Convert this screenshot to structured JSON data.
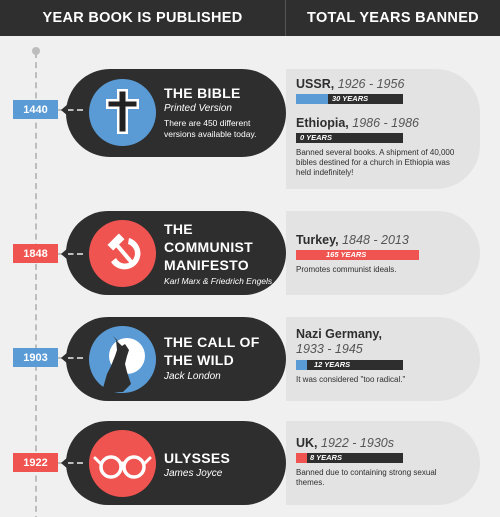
{
  "header": {
    "col_left": "YEAR BOOK IS PUBLISHED",
    "col_right": "TOTAL YEARS BANNED"
  },
  "colors": {
    "dark": "#2e2e2e",
    "blue": "#5b9bd5",
    "red": "#ef5450",
    "light": "#e3e3e3"
  },
  "books": [
    {
      "year": "1440",
      "title": [
        "THE BIBLE"
      ],
      "subtitle": "Printed Version",
      "note": "There are 450 different versions available today.",
      "icon": "cross-icon",
      "bans": [
        {
          "country": "USSR,",
          "years": "1926 - 1956",
          "bar_label": "30 YEARS",
          "bar_value": 30
        },
        {
          "country": "Ethiopia,",
          "years": "1986 - 1986",
          "bar_label": "0 YEARS",
          "bar_value": 0
        }
      ],
      "reason": "Banned several books. A shipment of 40,000 bibles destined for a church in Ethiopia was held indefinitely!"
    },
    {
      "year": "1848",
      "title": [
        "THE",
        "COMMUNIST",
        "MANIFESTO"
      ],
      "subtitle": "Karl Marx & Friedrich Engels",
      "icon": "hammer-sickle-icon",
      "bans": [
        {
          "country": "Turkey,",
          "years": "1848 - 2013",
          "bar_label": "165 YEARS",
          "bar_value": 165
        }
      ],
      "reason": "Promotes communist ideals."
    },
    {
      "year": "1903",
      "title": [
        "THE CALL OF",
        "THE WILD"
      ],
      "subtitle": "Jack London",
      "icon": "howling-wolf-icon",
      "bans": [
        {
          "country": "Nazi Germany,",
          "years": "1933 - 1945",
          "bar_label": "12 YEARS",
          "bar_value": 12
        }
      ],
      "reason": "It was considered \"too radical.\""
    },
    {
      "year": "1922",
      "title": [
        "ULYSSES"
      ],
      "subtitle": "James Joyce",
      "icon": "round-glasses-icon",
      "bans": [
        {
          "country": "UK,",
          "years": "1922 - 1930s",
          "bar_label": "8 YEARS",
          "bar_value": 8
        }
      ],
      "reason": "Banned due to containing strong sexual themes."
    }
  ]
}
